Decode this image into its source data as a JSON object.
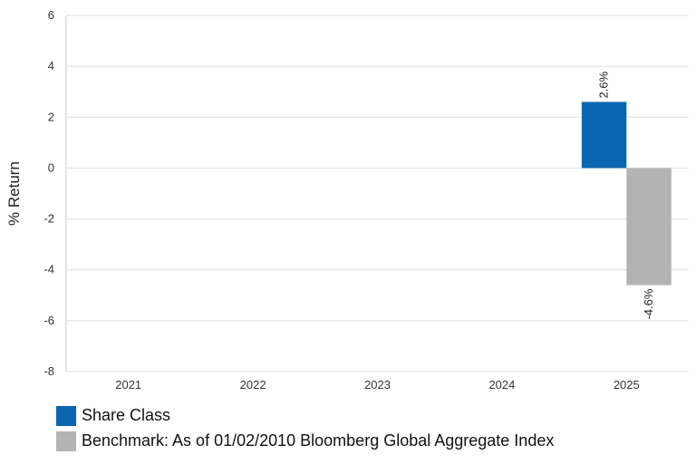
{
  "chart_data": {
    "type": "bar",
    "categories": [
      "2021",
      "2022",
      "2023",
      "2024",
      "2025"
    ],
    "series": [
      {
        "name": "Share Class",
        "color": "#0a66b0",
        "values": [
          null,
          null,
          null,
          null,
          2.6
        ],
        "labels": [
          "",
          "",
          "",
          "",
          "2.6%"
        ]
      },
      {
        "name": "Benchmark: As of 01/02/2010 Bloomberg Global Aggregate Index",
        "color": "#b3b3b3",
        "values": [
          null,
          null,
          null,
          null,
          -4.6
        ],
        "labels": [
          "",
          "",
          "",
          "",
          "-4.6%"
        ]
      }
    ],
    "ylabel": "% Return",
    "xlabel": "",
    "ylim": [
      -8,
      6
    ],
    "yticks": [
      "6",
      "4",
      "2",
      "0",
      "-2",
      "-4",
      "-6",
      "-8"
    ],
    "grid": true,
    "legend_position": "bottom-left"
  }
}
